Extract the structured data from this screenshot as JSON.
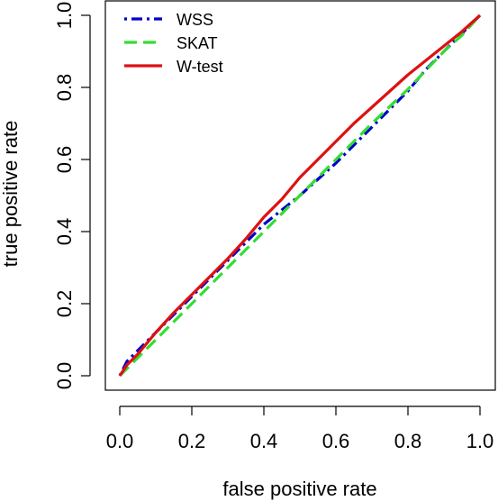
{
  "chart_data": {
    "type": "line",
    "title": "",
    "xlabel": "false positive rate",
    "ylabel": "true positive rate",
    "xlim": [
      0,
      1
    ],
    "ylim": [
      0,
      1
    ],
    "xticks": [
      "0.0",
      "0.2",
      "0.4",
      "0.6",
      "0.8",
      "1.0"
    ],
    "yticks": [
      "0.0",
      "0.2",
      "0.4",
      "0.6",
      "0.8",
      "1.0"
    ],
    "grid": false,
    "legend_position": "top-left",
    "series": [
      {
        "name": "WSS",
        "color": "#0000cc",
        "dash": "dot-dash",
        "x": [
          0,
          0.02,
          0.05,
          0.1,
          0.2,
          0.3,
          0.35,
          0.4,
          0.45,
          0.5,
          0.55,
          0.6,
          0.65,
          0.7,
          0.75,
          0.8,
          0.85,
          0.9,
          0.95,
          1.0
        ],
        "y": [
          0,
          0.04,
          0.07,
          0.12,
          0.22,
          0.32,
          0.37,
          0.42,
          0.46,
          0.5,
          0.545,
          0.59,
          0.64,
          0.69,
          0.74,
          0.79,
          0.85,
          0.9,
          0.95,
          1.0
        ]
      },
      {
        "name": "SKAT",
        "color": "#33dd33",
        "dash": "dashed",
        "x": [
          0,
          0.05,
          0.1,
          0.2,
          0.3,
          0.4,
          0.5,
          0.6,
          0.7,
          0.8,
          0.9,
          0.95,
          1.0
        ],
        "y": [
          0,
          0.05,
          0.1,
          0.2,
          0.3,
          0.4,
          0.5,
          0.6,
          0.7,
          0.795,
          0.9,
          0.945,
          1.0
        ]
      },
      {
        "name": "W-test",
        "color": "#dd1111",
        "dash": "solid",
        "x": [
          0,
          0.02,
          0.05,
          0.1,
          0.15,
          0.2,
          0.25,
          0.3,
          0.35,
          0.4,
          0.45,
          0.5,
          0.55,
          0.6,
          0.65,
          0.7,
          0.75,
          0.8,
          0.85,
          0.9,
          0.95,
          1.0
        ],
        "y": [
          0,
          0.03,
          0.06,
          0.12,
          0.175,
          0.225,
          0.275,
          0.325,
          0.38,
          0.44,
          0.49,
          0.55,
          0.6,
          0.65,
          0.7,
          0.745,
          0.79,
          0.835,
          0.875,
          0.915,
          0.955,
          1.0
        ]
      }
    ]
  }
}
